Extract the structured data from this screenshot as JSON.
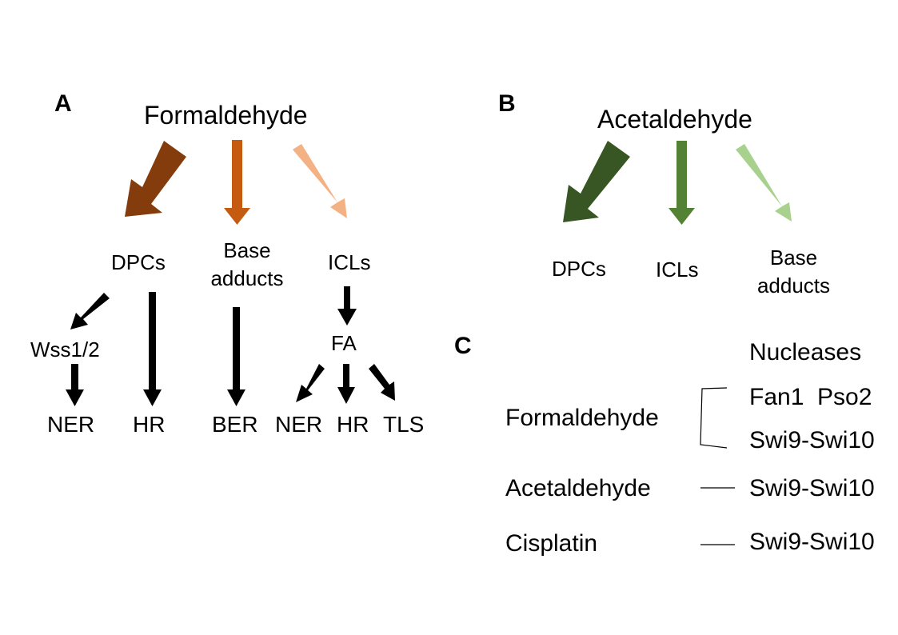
{
  "panel_a": {
    "letter": "A",
    "root": "Formaldehyde",
    "arrow_colors": [
      "#843c0c",
      "#c55a11",
      "#f4b183"
    ],
    "lesions": {
      "dpcs": "DPCs",
      "base_adducts": [
        "Base",
        "adducts"
      ],
      "icls": "ICLs"
    },
    "intermediates": {
      "wss": "Wss1/2",
      "fa": "FA"
    },
    "pathways": {
      "ner1": "NER",
      "hr1": "HR",
      "ber": "BER",
      "ner2": "NER",
      "hr2": "HR",
      "tls": "TLS"
    }
  },
  "panel_b": {
    "letter": "B",
    "root": "Acetaldehyde",
    "arrow_colors": [
      "#375623",
      "#548235",
      "#a9d18e"
    ],
    "lesions": {
      "dpcs": "DPCs",
      "icls": "ICLs",
      "base_adducts": [
        "Base",
        "adducts"
      ]
    }
  },
  "panel_c": {
    "letter": "C",
    "header": "Nucleases",
    "rows": [
      {
        "agent": "Formaldehyde",
        "nucleases": [
          "Fan1  Pso2",
          "Swi9-Swi10"
        ]
      },
      {
        "agent": "Acetaldehyde",
        "nucleases": [
          "Swi9-Swi10"
        ]
      },
      {
        "agent": "Cisplatin",
        "nucleases": [
          "Swi9-Swi10"
        ]
      }
    ]
  }
}
